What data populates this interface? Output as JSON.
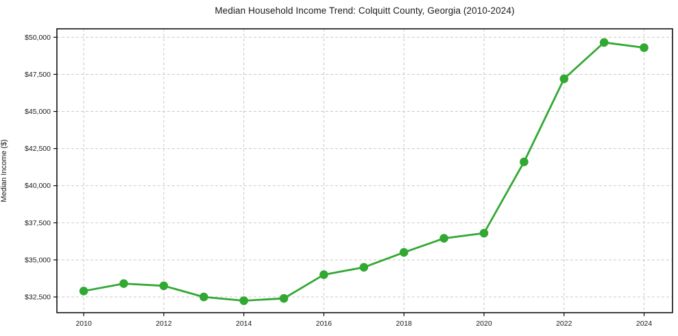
{
  "chart_data": {
    "type": "line",
    "title": "Median Household Income Trend: Colquitt County, Georgia (2010-2024)",
    "xlabel": "",
    "ylabel": "Median Income ($)",
    "series": [
      {
        "name": "Median Household Income",
        "x": [
          2010,
          2011,
          2012,
          2013,
          2014,
          2015,
          2016,
          2017,
          2018,
          2019,
          2020,
          2021,
          2022,
          2023,
          2024
        ],
        "values": [
          32900,
          33400,
          33250,
          32500,
          32250,
          32400,
          34000,
          34500,
          35500,
          36450,
          36800,
          41600,
          47200,
          49650,
          49300
        ]
      }
    ],
    "x_ticks": [
      2010,
      2012,
      2014,
      2016,
      2018,
      2020,
      2022,
      2024
    ],
    "x_tick_labels": [
      "2010",
      "2012",
      "2014",
      "2016",
      "2018",
      "2020",
      "2022",
      "2024"
    ],
    "y_ticks": [
      32500,
      35000,
      37500,
      40000,
      42500,
      45000,
      47500,
      50000
    ],
    "y_tick_labels": [
      "$32,500",
      "$35,000",
      "$37,500",
      "$40,000",
      "$42,500",
      "$45,000",
      "$47,500",
      "$50,000"
    ],
    "xlim": [
      2009.33,
      2024.71
    ],
    "ylim": [
      31440,
      50570
    ],
    "grid": true,
    "legend": "none",
    "colors": {
      "line": "#31a832",
      "marker": "#31a832",
      "grid": "#c9c9c9",
      "spine": "#000000",
      "background": "#ffffff"
    }
  }
}
